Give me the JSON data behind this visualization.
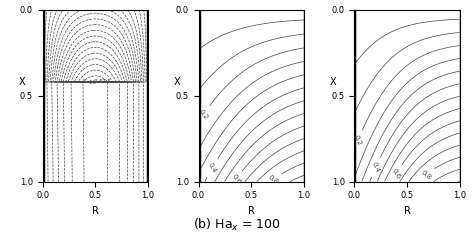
{
  "xlabel": "R",
  "ylabel": "X",
  "xlim": [
    0,
    1
  ],
  "ylim": [
    0,
    1
  ],
  "xticks": [
    0,
    0.5,
    1
  ],
  "yticks": [
    0,
    0.5,
    1
  ],
  "line_color": "#444444",
  "bg_color": "#ffffff",
  "title_fontsize": 9
}
